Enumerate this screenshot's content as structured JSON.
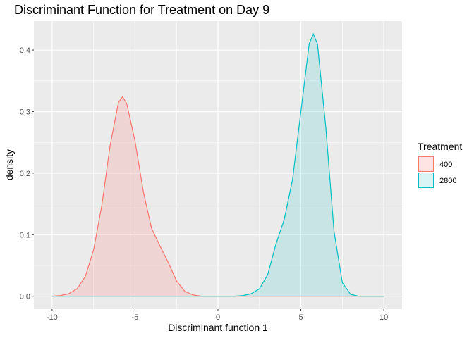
{
  "chart_data": {
    "type": "area",
    "title": "Discriminant Function for Treatment on Day 9",
    "xlabel": "Discriminant function 1",
    "ylabel": "density",
    "xlim": [
      -11.1,
      11.1
    ],
    "ylim": [
      -0.021,
      0.447
    ],
    "x_ticks": [
      -10,
      -5,
      0,
      5,
      10
    ],
    "x_tick_labels": [
      "-10",
      "-5",
      "0",
      "5",
      "10"
    ],
    "y_ticks": [
      0,
      0.1,
      0.2,
      0.3,
      0.4
    ],
    "y_tick_labels": [
      "0.0",
      "0.1",
      "0.2",
      "0.3",
      "0.4"
    ],
    "grid": true,
    "legend": {
      "title": "Treatment",
      "position": "right"
    },
    "series": [
      {
        "name": "400",
        "color": "#F8766D",
        "fill": "#F8766D",
        "fill_opacity": 0.2,
        "points": [
          [
            -10,
            0
          ],
          [
            -9.5,
            0.001
          ],
          [
            -9,
            0.004
          ],
          [
            -8.5,
            0.012
          ],
          [
            -8,
            0.032
          ],
          [
            -7.5,
            0.075
          ],
          [
            -7,
            0.148
          ],
          [
            -6.5,
            0.245
          ],
          [
            -6,
            0.315
          ],
          [
            -5.75,
            0.324
          ],
          [
            -5.5,
            0.313
          ],
          [
            -5,
            0.252
          ],
          [
            -4.5,
            0.17
          ],
          [
            -4,
            0.11
          ],
          [
            -3.5,
            0.082
          ],
          [
            -3,
            0.055
          ],
          [
            -2.5,
            0.025
          ],
          [
            -2,
            0.008
          ],
          [
            -1.5,
            0.002
          ],
          [
            -1,
            0
          ],
          [
            0,
            0
          ],
          [
            2,
            0
          ],
          [
            4,
            0
          ],
          [
            6,
            0
          ],
          [
            8,
            0
          ],
          [
            10,
            0
          ]
        ]
      },
      {
        "name": "2800",
        "color": "#00BFC4",
        "fill": "#00BFC4",
        "fill_opacity": 0.15,
        "points": [
          [
            -10,
            0
          ],
          [
            -5,
            0
          ],
          [
            0,
            0
          ],
          [
            1,
            0
          ],
          [
            1.5,
            0.001
          ],
          [
            2,
            0.004
          ],
          [
            2.5,
            0.012
          ],
          [
            3,
            0.035
          ],
          [
            3.5,
            0.085
          ],
          [
            4,
            0.125
          ],
          [
            4.5,
            0.19
          ],
          [
            5,
            0.3
          ],
          [
            5.5,
            0.41
          ],
          [
            5.75,
            0.426
          ],
          [
            6,
            0.41
          ],
          [
            6.5,
            0.275
          ],
          [
            7,
            0.105
          ],
          [
            7.5,
            0.022
          ],
          [
            8,
            0.003
          ],
          [
            8.5,
            0
          ],
          [
            9,
            0
          ],
          [
            10,
            0
          ]
        ]
      }
    ]
  }
}
